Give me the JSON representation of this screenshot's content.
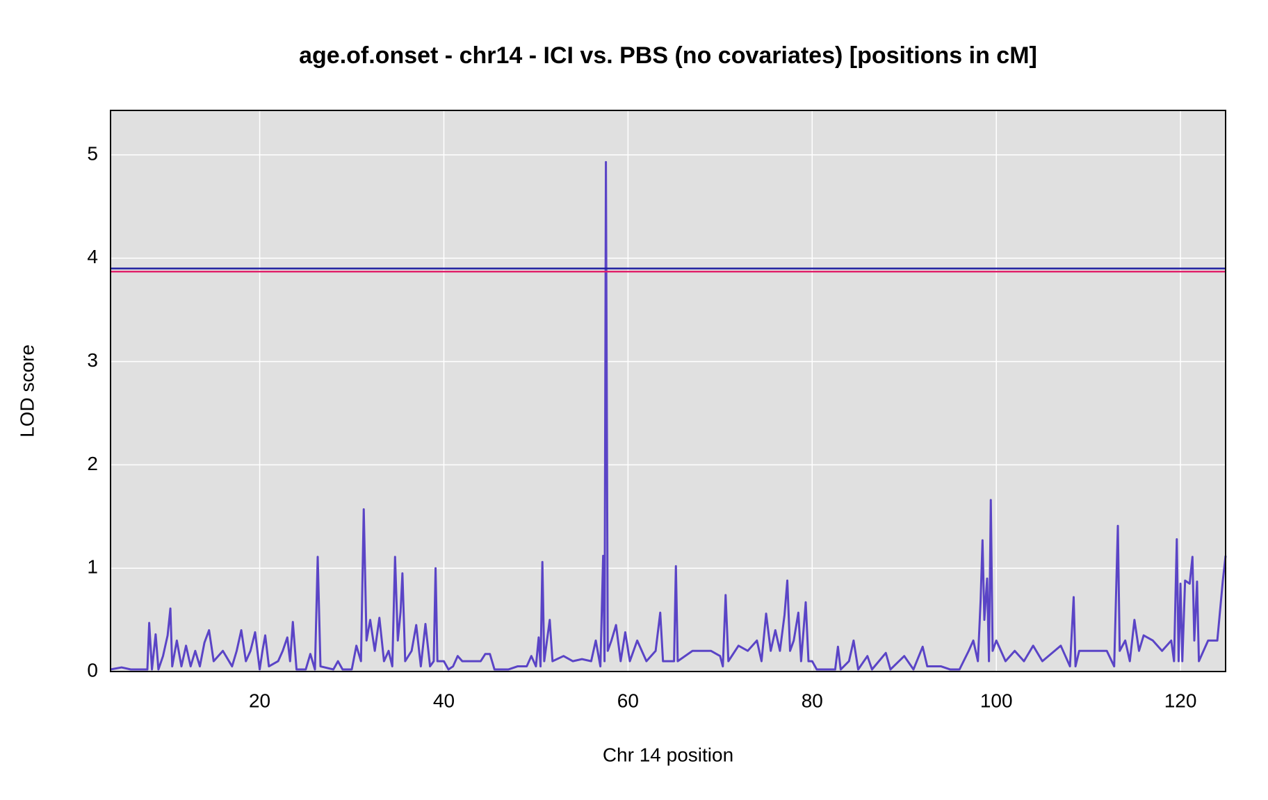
{
  "chart_data": {
    "type": "line",
    "title": "age.of.onset - chr14 - ICI vs. PBS (no covariates) [positions in cM]",
    "x_label": "Chr 14 position",
    "y_label": "LOD score",
    "xlim": [
      3.8,
      124.9
    ],
    "ylim": [
      0,
      5.43
    ],
    "xticks": [
      20,
      40,
      60,
      80,
      100,
      120
    ],
    "yticks": [
      0,
      1,
      2,
      3,
      4,
      5
    ],
    "grid": true,
    "background": "#e0e0e0",
    "grid_color": "#ffffff",
    "thresholds": [
      {
        "value": 3.9,
        "color": "#1f1fa0"
      },
      {
        "value": 3.87,
        "color": "#e0206a"
      }
    ],
    "x": [
      3.8,
      5,
      6,
      7.8,
      8,
      8.3,
      8.7,
      9,
      9.5,
      10,
      10.3,
      10.5,
      11,
      11.5,
      12,
      12.5,
      13,
      13.5,
      14,
      14.5,
      15,
      16,
      17,
      17.5,
      18,
      18.5,
      19,
      19.5,
      20,
      20.3,
      20.6,
      21,
      22,
      22.5,
      23,
      23.3,
      23.6,
      24,
      25,
      25.5,
      26,
      26.3,
      26.6,
      28,
      28.5,
      29,
      30,
      30.5,
      31,
      31.3,
      31.6,
      32,
      32.5,
      33,
      33.5,
      34,
      34.4,
      34.7,
      35,
      35.3,
      35.5,
      35.8,
      36.5,
      37,
      37.5,
      38,
      38.5,
      38.9,
      39.1,
      39.3,
      40,
      40.5,
      41,
      41.5,
      42,
      44,
      44.5,
      45,
      45.5,
      47,
      48,
      49,
      49.5,
      50,
      50.3,
      50.5,
      50.7,
      50.9,
      51.5,
      51.8,
      53,
      54,
      55,
      56,
      56.5,
      57,
      57.3,
      57.45,
      57.6,
      57.8,
      58.2,
      58.7,
      59.2,
      59.7,
      60.2,
      61,
      62,
      63,
      63.5,
      63.8,
      65,
      65.2,
      65.4,
      67,
      68,
      69,
      70,
      70.3,
      70.6,
      70.9,
      72,
      73,
      74,
      74.5,
      75,
      75.5,
      76,
      76.5,
      77,
      77.3,
      77.6,
      78,
      78.5,
      78.8,
      79.3,
      79.6,
      80,
      80.5,
      82.5,
      82.8,
      83.1,
      84,
      84.5,
      85,
      86,
      86.5,
      88,
      88.5,
      90,
      91,
      92,
      92.5,
      94,
      95,
      96,
      97,
      97.5,
      98,
      98.3,
      98.5,
      98.7,
      99,
      99.2,
      99.4,
      99.6,
      100,
      101,
      102,
      103,
      104,
      105,
      107,
      108,
      108.4,
      108.6,
      109,
      112,
      112.8,
      113.2,
      113.4,
      114,
      114.5,
      115,
      115.5,
      116,
      117,
      118,
      119,
      119.3,
      119.6,
      119.8,
      120,
      120.2,
      120.5,
      121,
      121.3,
      121.5,
      121.8,
      122,
      123,
      124,
      124.6,
      124.9
    ],
    "series": [
      {
        "color": "#5a44c6",
        "values": [
          0.02,
          0.04,
          0.02,
          0.02,
          0.47,
          0.02,
          0.36,
          0.02,
          0.15,
          0.35,
          0.61,
          0.05,
          0.3,
          0.05,
          0.25,
          0.05,
          0.2,
          0.05,
          0.28,
          0.4,
          0.1,
          0.2,
          0.05,
          0.2,
          0.4,
          0.1,
          0.2,
          0.38,
          0.02,
          0.2,
          0.35,
          0.05,
          0.1,
          0.2,
          0.33,
          0.1,
          0.48,
          0.02,
          0.02,
          0.17,
          0.02,
          1.11,
          0.05,
          0.02,
          0.1,
          0.02,
          0.02,
          0.25,
          0.1,
          1.57,
          0.3,
          0.5,
          0.2,
          0.52,
          0.1,
          0.2,
          0.05,
          1.11,
          0.3,
          0.58,
          0.95,
          0.1,
          0.2,
          0.45,
          0.05,
          0.46,
          0.05,
          0.1,
          1.0,
          0.1,
          0.1,
          0.02,
          0.05,
          0.15,
          0.1,
          0.1,
          0.17,
          0.17,
          0.02,
          0.02,
          0.05,
          0.05,
          0.15,
          0.05,
          0.33,
          0.05,
          1.06,
          0.1,
          0.5,
          0.1,
          0.15,
          0.1,
          0.12,
          0.1,
          0.3,
          0.05,
          1.12,
          0.1,
          4.93,
          0.2,
          0.3,
          0.45,
          0.1,
          0.38,
          0.1,
          0.3,
          0.1,
          0.2,
          0.57,
          0.1,
          0.1,
          1.02,
          0.1,
          0.2,
          0.2,
          0.2,
          0.15,
          0.05,
          0.74,
          0.1,
          0.25,
          0.2,
          0.3,
          0.1,
          0.56,
          0.2,
          0.4,
          0.2,
          0.55,
          0.88,
          0.2,
          0.3,
          0.57,
          0.1,
          0.67,
          0.1,
          0.1,
          0.02,
          0.02,
          0.24,
          0.02,
          0.1,
          0.3,
          0.02,
          0.15,
          0.02,
          0.18,
          0.02,
          0.15,
          0.02,
          0.24,
          0.05,
          0.05,
          0.02,
          0.02,
          0.2,
          0.3,
          0.1,
          0.7,
          1.27,
          0.5,
          0.9,
          0.1,
          1.66,
          0.2,
          0.3,
          0.1,
          0.2,
          0.1,
          0.25,
          0.1,
          0.25,
          0.05,
          0.72,
          0.05,
          0.2,
          0.2,
          0.05,
          1.41,
          0.2,
          0.3,
          0.1,
          0.5,
          0.2,
          0.35,
          0.3,
          0.2,
          0.3,
          0.1,
          1.28,
          0.1,
          0.85,
          0.1,
          0.88,
          0.85,
          1.11,
          0.3,
          0.87,
          0.1,
          0.3,
          0.3,
          0.88,
          1.12
        ]
      }
    ]
  }
}
